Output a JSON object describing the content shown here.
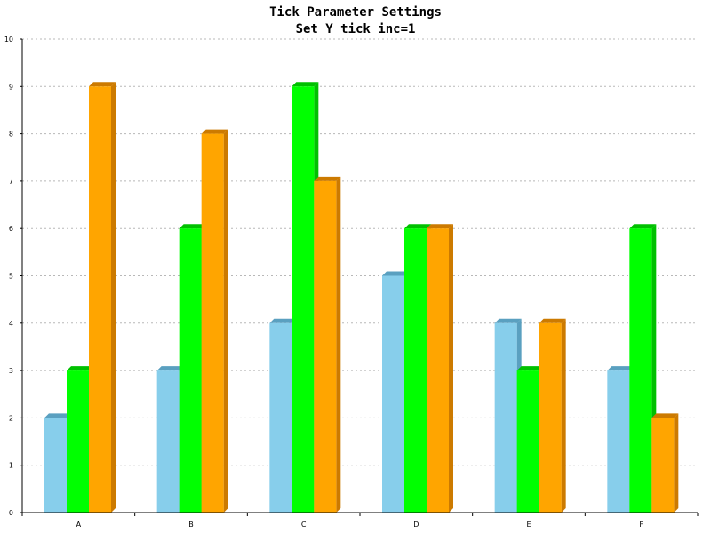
{
  "chart_data": {
    "type": "bar",
    "title": "Tick Parameter Settings",
    "subtitle": "Set Y tick inc=1",
    "categories": [
      "A",
      "B",
      "C",
      "D",
      "E",
      "F"
    ],
    "series": [
      {
        "values": [
          2,
          3,
          4,
          5,
          4,
          3
        ],
        "color": "#87ceeb",
        "side_color": "#5aa0c0"
      },
      {
        "values": [
          3,
          6,
          9,
          6,
          3,
          6
        ],
        "color": "#00ff00",
        "side_color": "#00c000"
      },
      {
        "values": [
          9,
          8,
          7,
          6,
          4,
          2
        ],
        "color": "#ffa500",
        "side_color": "#cc7a00"
      }
    ],
    "ylim": [
      0,
      10
    ],
    "ytick_inc": 1,
    "grid": true,
    "three_d": true
  }
}
